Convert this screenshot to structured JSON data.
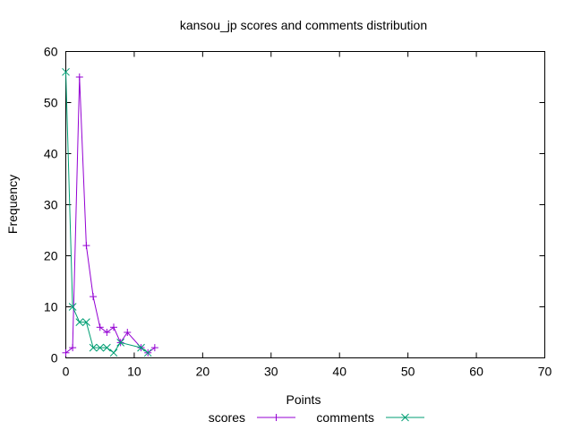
{
  "chart_data": {
    "type": "line",
    "title": "kansou_jp scores and comments distribution",
    "xlabel": "Points",
    "ylabel": "Frequency",
    "xlim": [
      0,
      70
    ],
    "ylim": [
      0,
      60
    ],
    "x_ticks": [
      0,
      10,
      20,
      30,
      40,
      50,
      60,
      70
    ],
    "y_ticks": [
      0,
      10,
      20,
      30,
      40,
      50,
      60
    ],
    "grid": false,
    "legend_position": "bottom-center",
    "series": [
      {
        "name": "scores",
        "color": "#9400d3",
        "marker": "plus",
        "points": [
          [
            0,
            1
          ],
          [
            1,
            2
          ],
          [
            2,
            55
          ],
          [
            3,
            22
          ],
          [
            4,
            12
          ],
          [
            5,
            6
          ],
          [
            6,
            5
          ],
          [
            7,
            6
          ],
          [
            8,
            3
          ],
          [
            9,
            5
          ],
          [
            11,
            2
          ],
          [
            12,
            1
          ],
          [
            13,
            2
          ]
        ]
      },
      {
        "name": "comments",
        "color": "#009e73",
        "marker": "cross",
        "points": [
          [
            0,
            56
          ],
          [
            1,
            10
          ],
          [
            2,
            7
          ],
          [
            3,
            7
          ],
          [
            4,
            2
          ],
          [
            5,
            2
          ],
          [
            6,
            2
          ],
          [
            7,
            1
          ],
          [
            8,
            3
          ],
          [
            11,
            2
          ],
          [
            12,
            1
          ]
        ]
      }
    ]
  }
}
